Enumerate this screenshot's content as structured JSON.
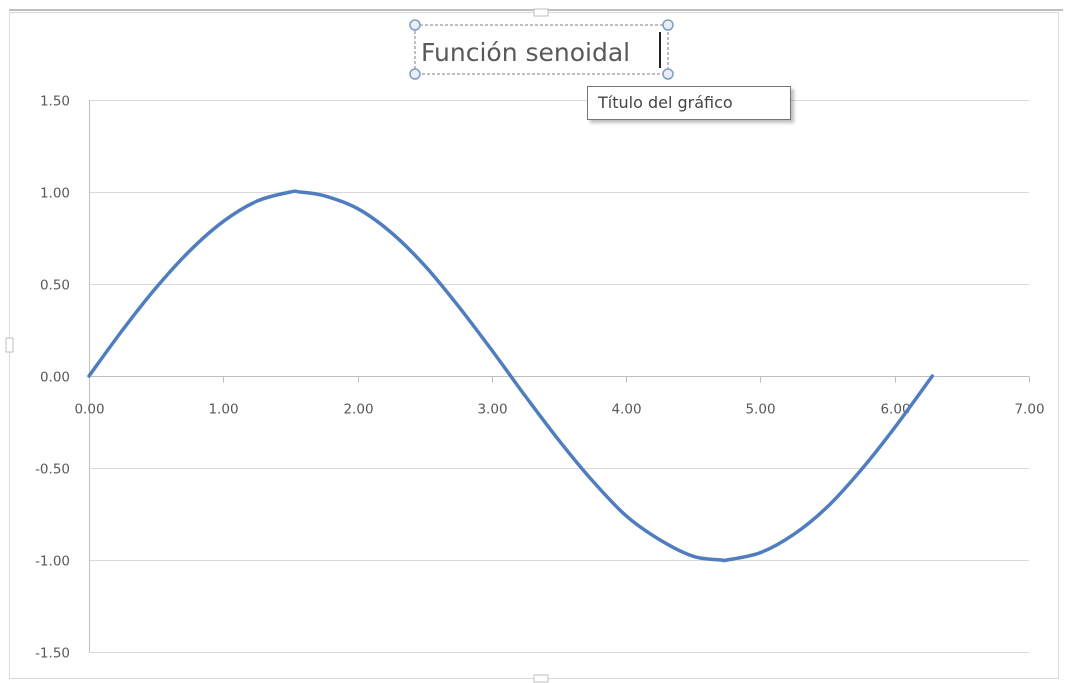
{
  "tooltip": {
    "text": "Título del gráfico"
  },
  "colors": {
    "series": "#4F7DBD",
    "grid": "#D9D9D9",
    "axis": "#BFBFBF",
    "text": "#595959",
    "handle": "#7F9CC4"
  },
  "chart_data": {
    "type": "scatter",
    "subtype": "smooth-line",
    "title": "Función  senoidal",
    "title_selected": true,
    "xlabel": "",
    "ylabel": "",
    "xlim": [
      0,
      7
    ],
    "ylim": [
      -1.5,
      1.5
    ],
    "x_ticks": [
      "0.00",
      "1.00",
      "2.00",
      "3.00",
      "4.00",
      "5.00",
      "6.00",
      "7.00"
    ],
    "y_ticks": [
      "1.50",
      "1.00",
      "0.50",
      "0.00",
      "-0.50",
      "-1.00",
      "-1.50"
    ],
    "grid": "horizontal",
    "legend": "none",
    "series": [
      {
        "x": [
          0.0,
          0.25,
          0.5,
          0.75,
          1.0,
          1.25,
          1.5,
          1.57,
          1.75,
          2.0,
          2.25,
          2.5,
          2.75,
          3.0,
          3.14,
          3.25,
          3.5,
          3.75,
          4.0,
          4.25,
          4.5,
          4.71,
          4.75,
          5.0,
          5.25,
          5.5,
          5.75,
          6.0,
          6.28
        ],
        "y": [
          0.0,
          0.25,
          0.48,
          0.68,
          0.84,
          0.95,
          1.0,
          1.0,
          0.98,
          0.91,
          0.78,
          0.6,
          0.38,
          0.14,
          0.0,
          -0.11,
          -0.35,
          -0.57,
          -0.76,
          -0.89,
          -0.98,
          -1.0,
          -1.0,
          -0.96,
          -0.86,
          -0.71,
          -0.51,
          -0.28,
          0.0
        ]
      }
    ]
  }
}
